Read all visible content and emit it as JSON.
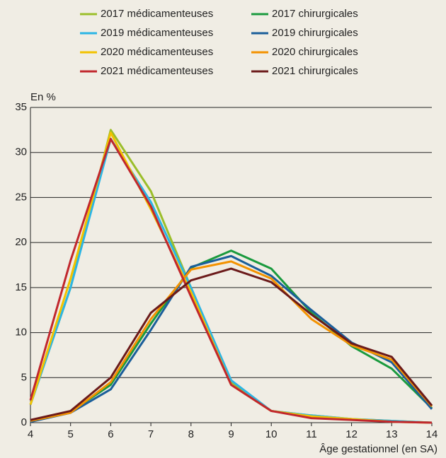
{
  "chart_data": {
    "type": "line",
    "y_label": "En %",
    "x_label": "Âge gestationnel (en SA)",
    "x": [
      4,
      5,
      6,
      7,
      8,
      9,
      10,
      11,
      12,
      13,
      14
    ],
    "xlim": [
      4,
      14
    ],
    "xticks": [
      4,
      5,
      6,
      7,
      8,
      9,
      10,
      11,
      12,
      13,
      14
    ],
    "ylim": [
      0,
      35
    ],
    "yticks": [
      0,
      5,
      10,
      15,
      20,
      25,
      30,
      35
    ],
    "grid": true,
    "series": [
      {
        "name": "2017 médicamenteuses",
        "color": "#9bbe2a",
        "values": [
          2,
          15,
          32.5,
          25.7,
          15,
          4.5,
          1.3,
          0.8,
          0.4,
          0.2,
          0
        ]
      },
      {
        "name": "2017 chirurgicales",
        "color": "#1a9a3e",
        "values": [
          0.2,
          1.2,
          4.2,
          11,
          17.2,
          19.1,
          17.1,
          12.2,
          8.5,
          6,
          1.6
        ]
      },
      {
        "name": "2019 médicamenteuses",
        "color": "#2bb5e5",
        "values": [
          2,
          15,
          31.5,
          24.5,
          15,
          4.7,
          1.3,
          0.8,
          0.4,
          0.2,
          0
        ]
      },
      {
        "name": "2019 chirurgicales",
        "color": "#1a5e9a",
        "values": [
          0.1,
          1.1,
          3.7,
          10.3,
          17.3,
          18.5,
          16.3,
          12.5,
          8.9,
          6.7,
          1.5
        ]
      },
      {
        "name": "2020 médicamenteuses",
        "color": "#f2c200",
        "values": [
          2,
          16,
          32.2,
          23.7,
          14.5,
          4.2,
          1.3,
          0.7,
          0.4,
          0.1,
          0
        ]
      },
      {
        "name": "2020 chirurgicales",
        "color": "#f39200",
        "values": [
          0.2,
          1.1,
          4.5,
          11.5,
          17,
          17.9,
          16,
          11.5,
          8.6,
          7,
          1.8
        ]
      },
      {
        "name": "2021 médicamenteuses",
        "color": "#c1272d",
        "values": [
          2.5,
          18,
          31.5,
          24,
          14,
          4.2,
          1.3,
          0.5,
          0.3,
          0.1,
          0
        ]
      },
      {
        "name": "2021 chirurgicales",
        "color": "#6b1a1a",
        "values": [
          0.3,
          1.3,
          5,
          12.2,
          15.8,
          17.1,
          15.6,
          12,
          8.8,
          7.3,
          1.9
        ]
      }
    ]
  }
}
